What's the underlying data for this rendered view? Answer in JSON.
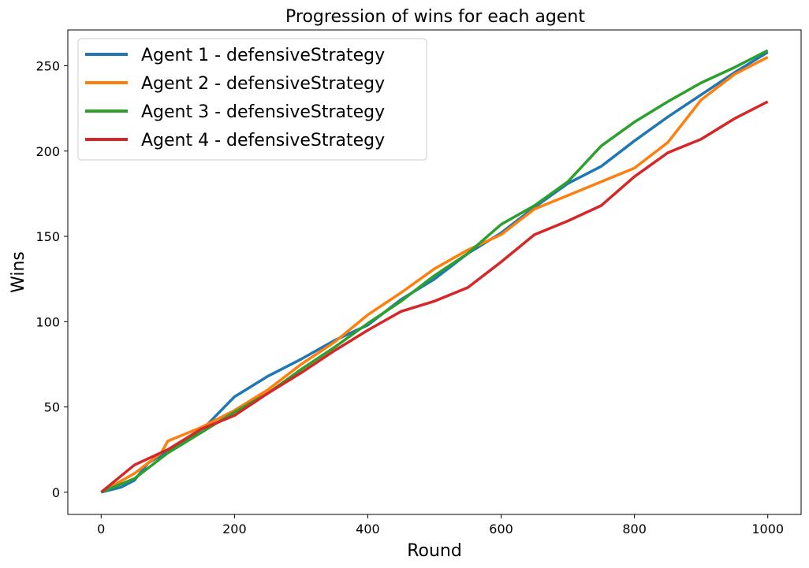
{
  "chart_data": {
    "type": "line",
    "title": "Progression of wins for each agent",
    "xlabel": "Round",
    "ylabel": "Wins",
    "xlim": [
      -50,
      1050
    ],
    "ylim": [
      -13,
      271
    ],
    "xticks": [
      0,
      200,
      400,
      600,
      800,
      1000
    ],
    "yticks": [
      0,
      50,
      100,
      150,
      200,
      250
    ],
    "grid": false,
    "legend_position": "top-left",
    "series": [
      {
        "name": "Agent 1 - defensiveStrategy",
        "color": "#1f77b4",
        "points": [
          [
            0,
            0
          ],
          [
            30,
            3
          ],
          [
            50,
            7
          ],
          [
            70,
            17
          ],
          [
            100,
            24
          ],
          [
            130,
            31
          ],
          [
            160,
            40
          ],
          [
            200,
            56
          ],
          [
            250,
            68
          ],
          [
            300,
            78
          ],
          [
            350,
            89
          ],
          [
            400,
            98
          ],
          [
            450,
            113
          ],
          [
            500,
            125
          ],
          [
            550,
            140
          ],
          [
            600,
            152
          ],
          [
            650,
            167
          ],
          [
            700,
            181
          ],
          [
            750,
            191
          ],
          [
            800,
            206
          ],
          [
            850,
            220
          ],
          [
            900,
            233
          ],
          [
            950,
            246
          ],
          [
            1000,
            258
          ]
        ]
      },
      {
        "name": "Agent 2 - defensiveStrategy",
        "color": "#ff7f0e",
        "points": [
          [
            0,
            0
          ],
          [
            50,
            11
          ],
          [
            90,
            23
          ],
          [
            100,
            30
          ],
          [
            150,
            38
          ],
          [
            200,
            48
          ],
          [
            250,
            60
          ],
          [
            300,
            75
          ],
          [
            350,
            88
          ],
          [
            400,
            104
          ],
          [
            450,
            117
          ],
          [
            500,
            131
          ],
          [
            550,
            142
          ],
          [
            600,
            151
          ],
          [
            650,
            166
          ],
          [
            700,
            174
          ],
          [
            750,
            182
          ],
          [
            800,
            190
          ],
          [
            850,
            205
          ],
          [
            900,
            230
          ],
          [
            950,
            245
          ],
          [
            1000,
            255
          ]
        ]
      },
      {
        "name": "Agent 3 - defensiveStrategy",
        "color": "#2ca02c",
        "points": [
          [
            0,
            0
          ],
          [
            50,
            8
          ],
          [
            100,
            23
          ],
          [
            150,
            35
          ],
          [
            200,
            47
          ],
          [
            250,
            58
          ],
          [
            300,
            72
          ],
          [
            350,
            85
          ],
          [
            400,
            99
          ],
          [
            450,
            112
          ],
          [
            500,
            127
          ],
          [
            550,
            140
          ],
          [
            600,
            157
          ],
          [
            650,
            168
          ],
          [
            700,
            182
          ],
          [
            750,
            203
          ],
          [
            800,
            217
          ],
          [
            850,
            229
          ],
          [
            900,
            240
          ],
          [
            950,
            249
          ],
          [
            1000,
            259
          ]
        ]
      },
      {
        "name": "Agent 4 - defensiveStrategy",
        "color": "#d62728",
        "points": [
          [
            0,
            0
          ],
          [
            50,
            16
          ],
          [
            100,
            25
          ],
          [
            150,
            37
          ],
          [
            200,
            45
          ],
          [
            250,
            58
          ],
          [
            300,
            70
          ],
          [
            350,
            83
          ],
          [
            400,
            95
          ],
          [
            450,
            106
          ],
          [
            500,
            112
          ],
          [
            550,
            120
          ],
          [
            600,
            135
          ],
          [
            650,
            151
          ],
          [
            700,
            159
          ],
          [
            750,
            168
          ],
          [
            800,
            185
          ],
          [
            850,
            199
          ],
          [
            900,
            207
          ],
          [
            950,
            219
          ],
          [
            1000,
            229
          ]
        ]
      }
    ]
  }
}
